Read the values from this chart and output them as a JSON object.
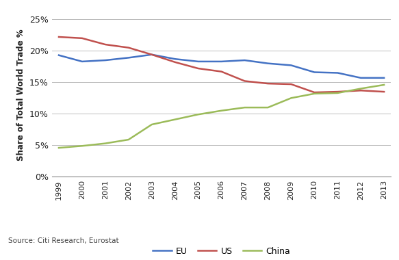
{
  "years": [
    1999,
    2000,
    2001,
    2002,
    2003,
    2004,
    2005,
    2006,
    2007,
    2008,
    2009,
    2010,
    2011,
    2012,
    2013
  ],
  "EU": [
    19.3,
    18.3,
    18.5,
    18.9,
    19.4,
    18.7,
    18.3,
    18.3,
    18.5,
    18.0,
    17.7,
    16.6,
    16.5,
    15.7,
    15.7
  ],
  "US": [
    22.2,
    22.0,
    21.0,
    20.5,
    19.4,
    18.2,
    17.2,
    16.7,
    15.2,
    14.8,
    14.7,
    13.4,
    13.5,
    13.7,
    13.5
  ],
  "China": [
    4.6,
    4.9,
    5.3,
    5.9,
    8.3,
    9.1,
    9.9,
    10.5,
    11.0,
    11.0,
    12.5,
    13.2,
    13.3,
    14.0,
    14.6
  ],
  "EU_color": "#4472C4",
  "US_color": "#C0504D",
  "China_color": "#9BBB59",
  "ylabel": "Share of Total World Trade %",
  "ylim": [
    0,
    26
  ],
  "yticks": [
    0,
    5,
    10,
    15,
    20,
    25
  ],
  "source_text": "Source: Citi Research, Eurostat",
  "bg_color": "#FFFFFF",
  "grid_color": "#BBBBBB",
  "bottom_bar_color": "#1F3864"
}
